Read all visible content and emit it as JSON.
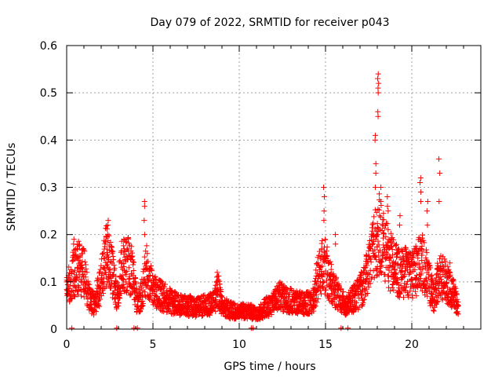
{
  "chart_data": {
    "type": "scatter",
    "title": "Day 079 of 2022, SRMTID for receiver p043",
    "xlabel": "GPS time / hours",
    "ylabel": "SRMTID / TECUs",
    "xlim": [
      0,
      24
    ],
    "ylim": [
      0,
      0.6
    ],
    "xticks": [
      0,
      5,
      10,
      15,
      20
    ],
    "yticks": [
      0,
      0.1,
      0.2,
      0.3,
      0.4,
      0.5,
      0.6
    ],
    "xtick_labels": [
      "0",
      "5",
      "10",
      "15",
      "20"
    ],
    "ytick_labels": [
      "0",
      "0.1",
      "0.2",
      "0.3",
      "0.4",
      "0.5",
      "0.6"
    ],
    "grid": true,
    "marker": "+",
    "series": [
      {
        "name": "SRMTID",
        "color": "#ff0000",
        "profile_x": [
          0.0,
          0.3,
          0.7,
          1.0,
          1.3,
          1.6,
          2.0,
          2.3,
          2.6,
          2.9,
          3.2,
          3.5,
          3.8,
          4.1,
          4.4,
          4.6,
          5.0,
          5.5,
          6.0,
          6.5,
          7.0,
          7.5,
          8.0,
          8.5,
          8.8,
          9.0,
          9.5,
          10.0,
          10.5,
          11.0,
          11.5,
          12.0,
          12.3,
          12.6,
          13.0,
          13.5,
          14.0,
          14.3,
          14.6,
          14.9,
          15.1,
          15.4,
          15.6,
          15.9,
          16.2,
          16.5,
          16.8,
          17.0,
          17.3,
          17.6,
          17.9,
          18.1,
          18.4,
          18.8,
          19.2,
          19.6,
          20.0,
          20.3,
          20.6,
          21.0,
          21.3,
          21.6,
          22.0,
          22.3,
          22.7
        ],
        "profile_y": [
          0.08,
          0.11,
          0.13,
          0.12,
          0.07,
          0.05,
          0.1,
          0.16,
          0.13,
          0.07,
          0.13,
          0.14,
          0.12,
          0.05,
          0.08,
          0.13,
          0.08,
          0.07,
          0.06,
          0.05,
          0.05,
          0.045,
          0.05,
          0.055,
          0.08,
          0.05,
          0.04,
          0.035,
          0.04,
          0.03,
          0.045,
          0.055,
          0.07,
          0.065,
          0.06,
          0.055,
          0.055,
          0.06,
          0.12,
          0.14,
          0.12,
          0.09,
          0.08,
          0.06,
          0.05,
          0.06,
          0.07,
          0.08,
          0.1,
          0.14,
          0.18,
          0.2,
          0.17,
          0.14,
          0.12,
          0.12,
          0.11,
          0.13,
          0.14,
          0.1,
          0.06,
          0.12,
          0.1,
          0.08,
          0.05
        ],
        "spikes": [
          {
            "x": 0.4,
            "ys": [
              0.18,
              0.19
            ]
          },
          {
            "x": 2.4,
            "ys": [
              0.2,
              0.22,
              0.23
            ]
          },
          {
            "x": 3.3,
            "ys": [
              0.17,
              0.19
            ]
          },
          {
            "x": 4.5,
            "ys": [
              0.2,
              0.23,
              0.26,
              0.27
            ]
          },
          {
            "x": 8.7,
            "ys": [
              0.1,
              0.11,
              0.12
            ]
          },
          {
            "x": 14.9,
            "ys": [
              0.23,
              0.25,
              0.28,
              0.3
            ]
          },
          {
            "x": 15.6,
            "ys": [
              0.18,
              0.2
            ]
          },
          {
            "x": 17.9,
            "ys": [
              0.3,
              0.33,
              0.35,
              0.4,
              0.41
            ]
          },
          {
            "x": 18.05,
            "ys": [
              0.45,
              0.46,
              0.5,
              0.51,
              0.52,
              0.53,
              0.54
            ]
          },
          {
            "x": 18.2,
            "ys": [
              0.3,
              0.27
            ]
          },
          {
            "x": 18.6,
            "ys": [
              0.25,
              0.26,
              0.28
            ]
          },
          {
            "x": 19.3,
            "ys": [
              0.22,
              0.24
            ]
          },
          {
            "x": 20.5,
            "ys": [
              0.27,
              0.29,
              0.31,
              0.32
            ]
          },
          {
            "x": 20.9,
            "ys": [
              0.22,
              0.25,
              0.27
            ]
          },
          {
            "x": 21.6,
            "ys": [
              0.27,
              0.33,
              0.36
            ]
          },
          {
            "x": 22.2,
            "ys": [
              0.12,
              0.14
            ]
          }
        ],
        "near_zero_x": [
          0.3,
          2.9,
          3.9,
          4.1,
          10.7,
          10.8,
          15.9,
          16.3
        ]
      }
    ]
  }
}
